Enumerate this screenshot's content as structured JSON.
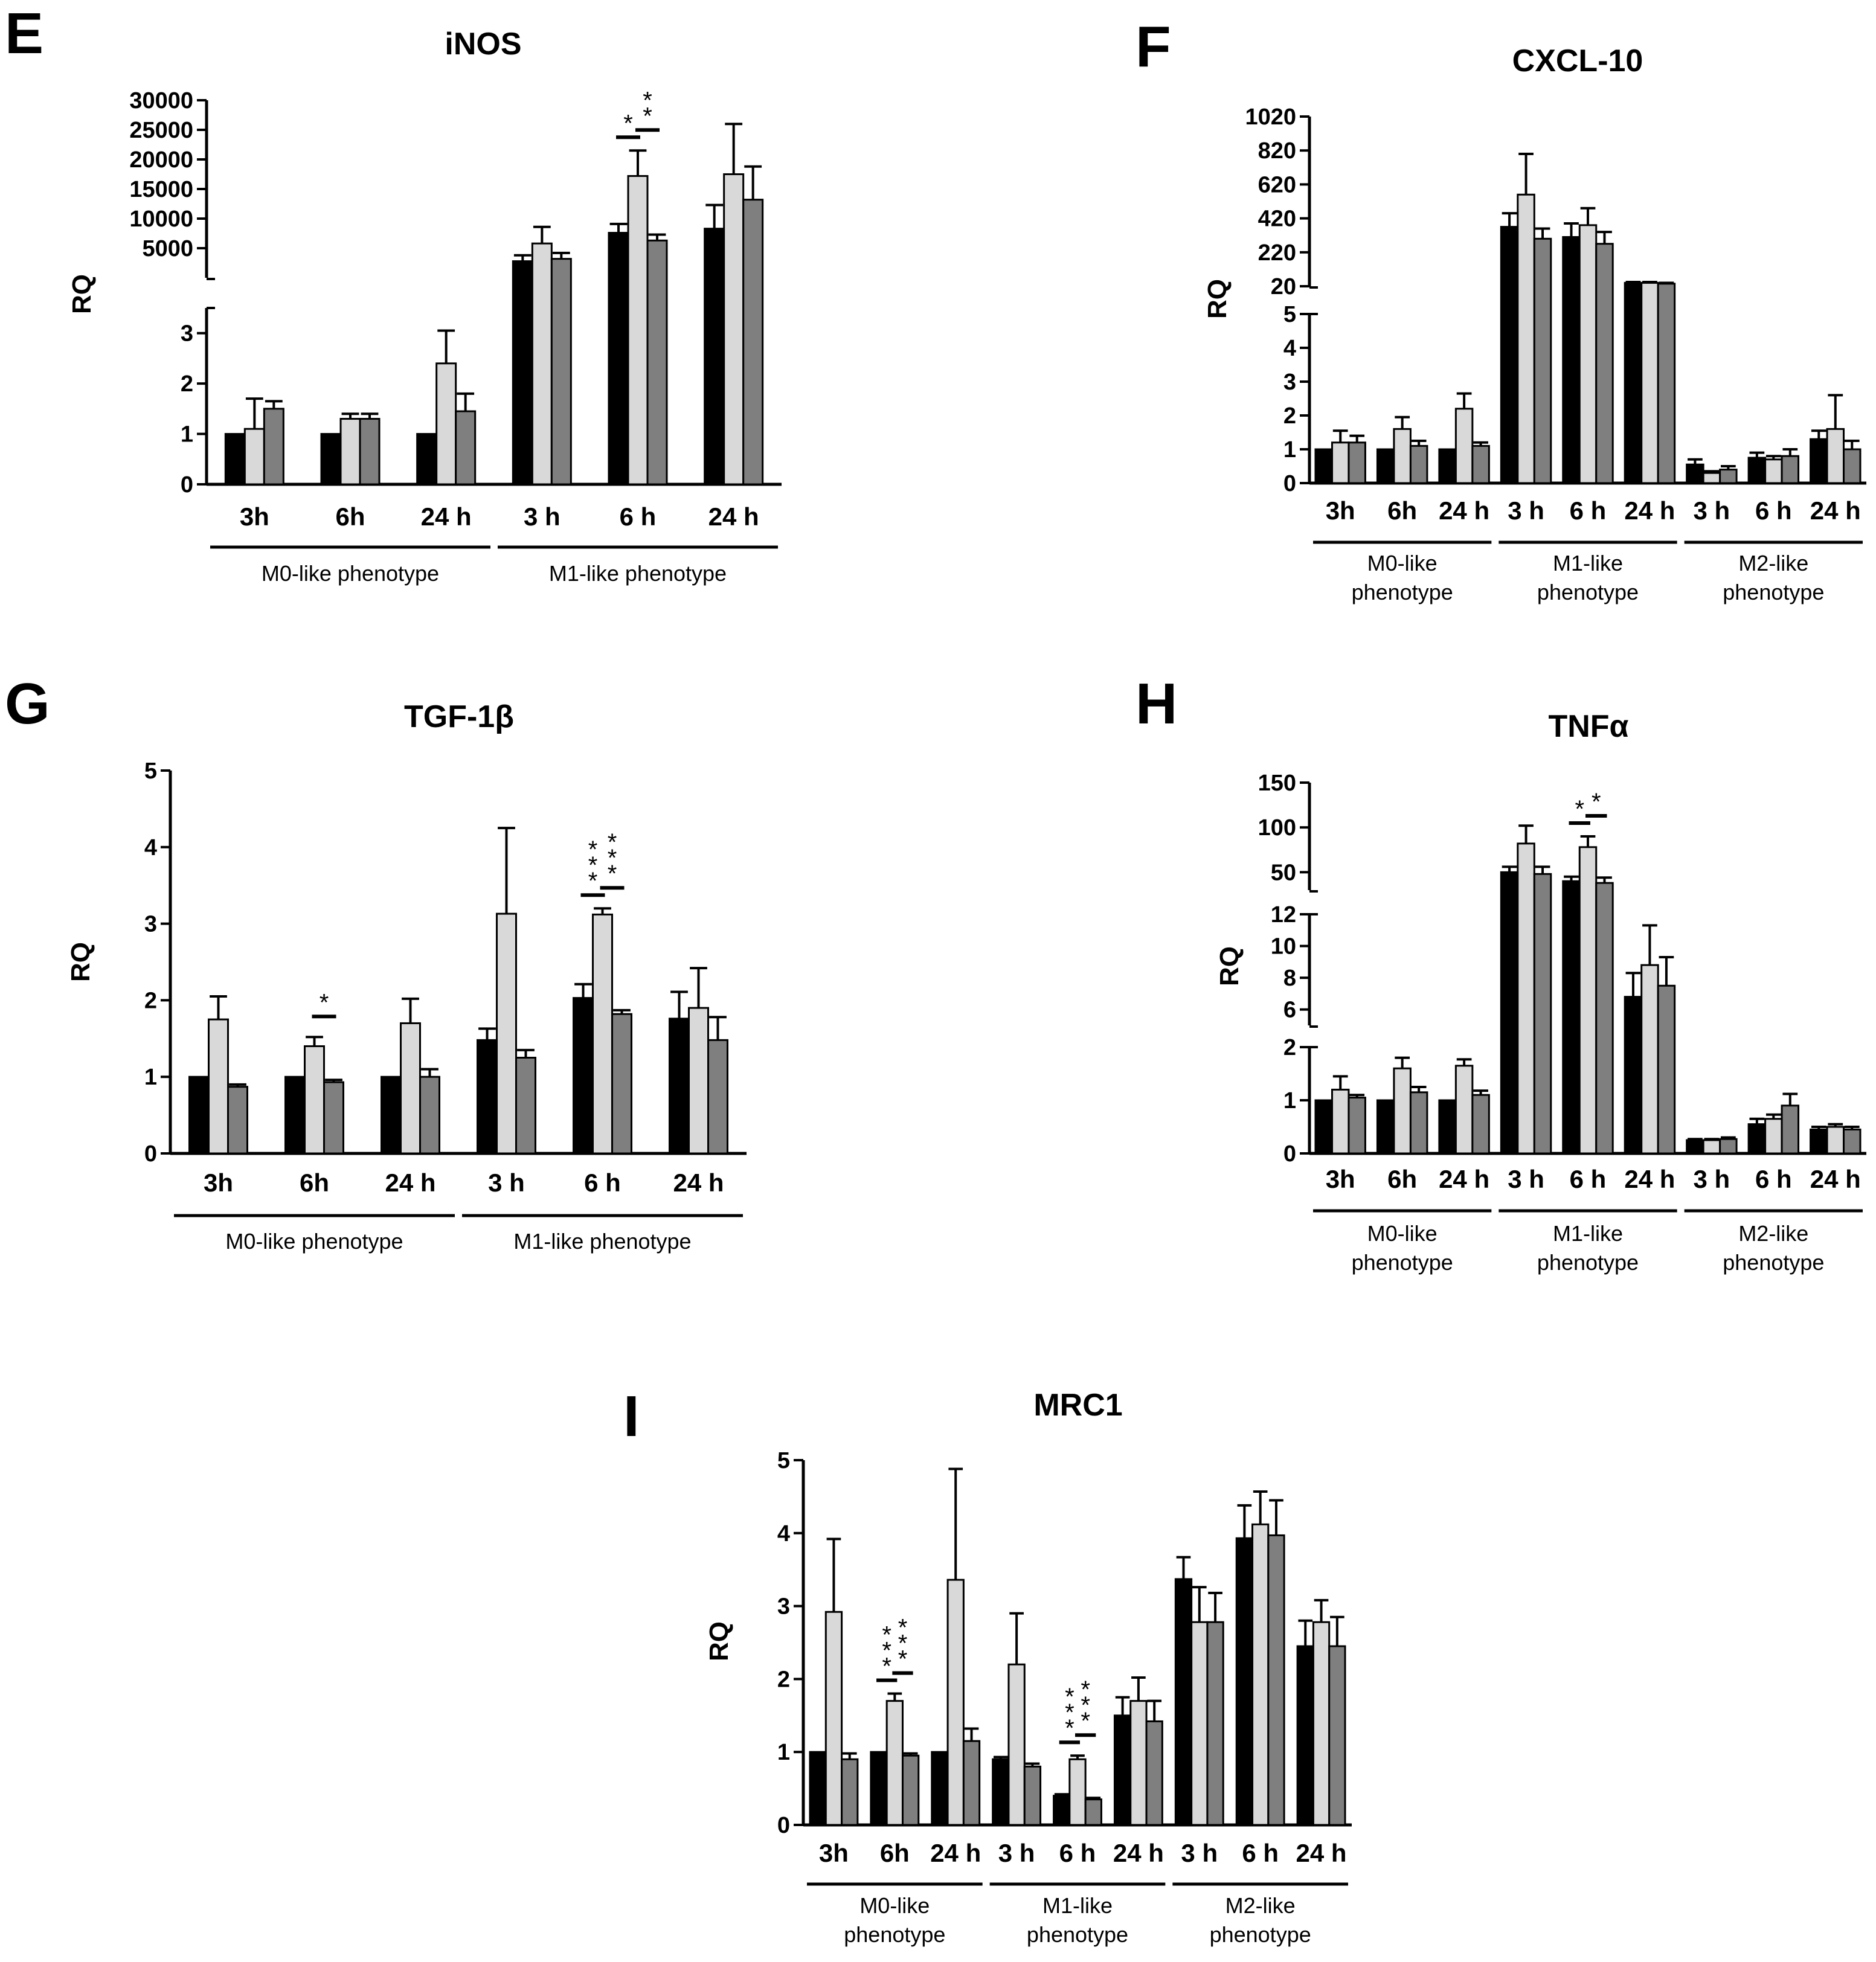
{
  "panel_letters": [
    "E",
    "F",
    "G",
    "H",
    "I"
  ],
  "colors": {
    "series": [
      "#000000",
      "#d9d9d9",
      "#7f7f7f"
    ],
    "axis": "#000000"
  },
  "chart_data": [
    {
      "id": "E",
      "letter": "E",
      "type": "bar",
      "title": "iNOS",
      "ylabel": "RQ",
      "xticks": [
        "3h",
        "6h",
        "24 h",
        "3 h",
        "6 h",
        "24 h"
      ],
      "groups": [
        {
          "label": [
            "M0-like phenotype"
          ],
          "n": 3
        },
        {
          "label": [
            "M1-like phenotype"
          ],
          "n": 3
        }
      ],
      "lower": {
        "max": 3.5,
        "ticks": [
          0,
          1,
          2,
          3
        ],
        "labels": [
          "0",
          "1",
          "2",
          "3"
        ]
      },
      "upper": {
        "min": 0,
        "max": 30000,
        "ticks": [
          5000,
          10000,
          15000,
          20000,
          25000,
          30000
        ],
        "labels": [
          "5000",
          "10000",
          "15000",
          "20000",
          "25000",
          "30000"
        ]
      },
      "bars": [
        [
          1,
          1.1,
          1.5
        ],
        [
          1,
          1.3,
          1.3
        ],
        [
          1,
          2.4,
          1.45
        ],
        [
          2800,
          5800,
          3200
        ],
        [
          7600,
          17200,
          6300
        ],
        [
          8300,
          17500,
          13200
        ]
      ],
      "errors": [
        [
          0,
          0.6,
          0.15
        ],
        [
          0,
          0.1,
          0.1
        ],
        [
          0,
          0.65,
          0.35
        ],
        [
          1000,
          2800,
          1000
        ],
        [
          1500,
          4300,
          1000
        ],
        [
          4000,
          8500,
          5600
        ]
      ],
      "significance": [
        {
          "x": 4,
          "from": 0,
          "to": 1,
          "label": [
            "*"
          ]
        },
        {
          "x": 4,
          "from": 1,
          "to": 2,
          "label": [
            "*",
            "*"
          ]
        }
      ]
    },
    {
      "id": "F",
      "letter": "F",
      "type": "bar",
      "title": "CXCL-10",
      "ylabel": "RQ",
      "xticks": [
        "3h",
        "6h",
        "24 h",
        "3 h",
        "6 h",
        "24 h",
        "3 h",
        "6 h",
        "24 h"
      ],
      "groups": [
        {
          "label": [
            "M0-like",
            "phenotype"
          ],
          "n": 3
        },
        {
          "label": [
            "M1-like",
            "phenotype"
          ],
          "n": 3
        },
        {
          "label": [
            "M2-like",
            "phenotype"
          ],
          "n": 3
        }
      ],
      "lower": {
        "max": 5,
        "ticks": [
          0,
          1,
          2,
          3,
          4,
          5
        ],
        "labels": [
          "0",
          "1",
          "2",
          "3",
          "4",
          "5"
        ]
      },
      "upper": {
        "min": 20,
        "max": 1020,
        "ticks": [
          20,
          220,
          420,
          620,
          820,
          1020
        ],
        "labels": [
          "20",
          "220",
          "420",
          "620",
          "820",
          "1020"
        ]
      },
      "bars": [
        [
          1,
          1.2,
          1.2
        ],
        [
          1,
          1.6,
          1.1
        ],
        [
          1,
          2.2,
          1.1
        ],
        [
          370,
          560,
          300
        ],
        [
          310,
          380,
          270
        ],
        [
          40,
          40,
          35
        ],
        [
          0.55,
          0.3,
          0.4
        ],
        [
          0.75,
          0.7,
          0.8
        ],
        [
          1.3,
          1.6,
          1.0
        ]
      ],
      "errors": [
        [
          0,
          0.35,
          0.2
        ],
        [
          0,
          0.35,
          0.15
        ],
        [
          0,
          0.45,
          0.1
        ],
        [
          80,
          240,
          60
        ],
        [
          80,
          100,
          70
        ],
        [
          5,
          5,
          5
        ],
        [
          0.15,
          0.05,
          0.1
        ],
        [
          0.15,
          0.1,
          0.2
        ],
        [
          0.25,
          1.0,
          0.25
        ]
      ],
      "significance": []
    },
    {
      "id": "G",
      "letter": "G",
      "type": "bar",
      "title": "TGF-1β",
      "ylabel": "RQ",
      "xticks": [
        "3h",
        "6h",
        "24 h",
        "3 h",
        "6 h",
        "24 h"
      ],
      "groups": [
        {
          "label": [
            "M0-like phenotype"
          ],
          "n": 3
        },
        {
          "label": [
            "M1-like phenotype"
          ],
          "n": 3
        }
      ],
      "ylim": [
        0,
        5
      ],
      "ticks": [
        0,
        1,
        2,
        3,
        4,
        5
      ],
      "labels": [
        "0",
        "1",
        "2",
        "3",
        "4",
        "5"
      ],
      "bars": [
        [
          1,
          1.75,
          0.87
        ],
        [
          1,
          1.4,
          0.93
        ],
        [
          1,
          1.7,
          1.0
        ],
        [
          1.48,
          3.13,
          1.25
        ],
        [
          2.03,
          3.12,
          1.82
        ],
        [
          1.76,
          1.9,
          1.48
        ]
      ],
      "errors": [
        [
          0,
          0.3,
          0.03
        ],
        [
          0,
          0.12,
          0.03
        ],
        [
          0,
          0.32,
          0.1
        ],
        [
          0.15,
          1.12,
          0.1
        ],
        [
          0.18,
          0.08,
          0.05
        ],
        [
          0.35,
          0.52,
          0.3
        ]
      ],
      "significance": [
        {
          "x": 1,
          "from": 1,
          "to": 2,
          "label": [
            "*"
          ]
        },
        {
          "x": 4,
          "from": 0,
          "to": 1,
          "label": [
            "*",
            "*",
            "*"
          ]
        },
        {
          "x": 4,
          "from": 1,
          "to": 2,
          "label": [
            "*",
            "*",
            "*"
          ]
        }
      ]
    },
    {
      "id": "H",
      "letter": "H",
      "type": "bar",
      "title": "TNFα",
      "ylabel": "RQ",
      "xticks": [
        "3h",
        "6h",
        "24 h",
        "3 h",
        "6 h",
        "24 h",
        "3 h",
        "6 h",
        "24 h"
      ],
      "groups": [
        {
          "label": [
            "M0-like",
            "phenotype"
          ],
          "n": 3
        },
        {
          "label": [
            "M1-like",
            "phenotype"
          ],
          "n": 3
        },
        {
          "label": [
            "M2-like",
            "phenotype"
          ],
          "n": 3
        }
      ],
      "lower": {
        "max": 2,
        "ticks": [
          0,
          1,
          2
        ],
        "labels": [
          "0",
          "1",
          "2"
        ]
      },
      "middle": {
        "min": 5,
        "max": 12,
        "ticks": [
          6,
          8,
          10,
          12
        ],
        "labels": [
          "6",
          "8",
          "10",
          "12"
        ]
      },
      "upper": {
        "min": 30,
        "max": 150,
        "ticks": [
          50,
          100,
          150
        ],
        "labels": [
          "50",
          "100",
          "150"
        ]
      },
      "bars": [
        [
          1,
          1.2,
          1.05
        ],
        [
          1,
          1.6,
          1.15
        ],
        [
          1,
          1.65,
          1.1
        ],
        [
          50,
          82,
          48
        ],
        [
          40,
          78,
          38
        ],
        [
          6.8,
          8.8,
          7.5
        ],
        [
          0.25,
          0.25,
          0.27
        ],
        [
          0.55,
          0.65,
          0.9
        ],
        [
          0.45,
          0.5,
          0.45
        ]
      ],
      "errors": [
        [
          0,
          0.25,
          0.05
        ],
        [
          0,
          0.2,
          0.1
        ],
        [
          0,
          0.12,
          0.08
        ],
        [
          6,
          20,
          8
        ],
        [
          5,
          12,
          6
        ],
        [
          1.5,
          2.5,
          1.8
        ],
        [
          0.02,
          0.02,
          0.03
        ],
        [
          0.1,
          0.08,
          0.22
        ],
        [
          0.05,
          0.05,
          0.05
        ]
      ],
      "significance": [
        {
          "x": 4,
          "from": 0,
          "to": 1,
          "label": [
            "*"
          ]
        },
        {
          "x": 4,
          "from": 1,
          "to": 2,
          "label": [
            "*"
          ]
        }
      ]
    },
    {
      "id": "I",
      "letter": "I",
      "type": "bar",
      "title": "MRC1",
      "ylabel": "RQ",
      "xticks": [
        "3h",
        "6h",
        "24 h",
        "3 h",
        "6 h",
        "24 h",
        "3 h",
        "6 h",
        "24 h"
      ],
      "groups": [
        {
          "label": [
            "M0-like",
            "phenotype"
          ],
          "n": 3
        },
        {
          "label": [
            "M1-like",
            "phenotype"
          ],
          "n": 3
        },
        {
          "label": [
            "M2-like",
            "phenotype"
          ],
          "n": 3
        }
      ],
      "ylim": [
        0,
        5
      ],
      "ticks": [
        0,
        1,
        2,
        3,
        4,
        5
      ],
      "labels": [
        "0",
        "1",
        "2",
        "3",
        "4",
        "5"
      ],
      "bars": [
        [
          1,
          2.92,
          0.9
        ],
        [
          1,
          1.7,
          0.95
        ],
        [
          1,
          3.36,
          1.15
        ],
        [
          0.9,
          2.2,
          0.8
        ],
        [
          0.4,
          0.9,
          0.35
        ],
        [
          1.5,
          1.7,
          1.42
        ],
        [
          3.37,
          2.78,
          2.78
        ],
        [
          3.93,
          4.12,
          3.97
        ],
        [
          2.45,
          2.78,
          2.45
        ]
      ],
      "errors": [
        [
          0,
          1.0,
          0.08
        ],
        [
          0,
          0.1,
          0.03
        ],
        [
          0,
          1.52,
          0.17
        ],
        [
          0.03,
          0.7,
          0.04
        ],
        [
          0.02,
          0.05,
          0.02
        ],
        [
          0.25,
          0.32,
          0.28
        ],
        [
          0.3,
          0.48,
          0.4
        ],
        [
          0.45,
          0.45,
          0.48
        ],
        [
          0.35,
          0.3,
          0.4
        ]
      ],
      "significance": [
        {
          "x": 1,
          "from": 0,
          "to": 1,
          "label": [
            "*",
            "*",
            "*"
          ]
        },
        {
          "x": 1,
          "from": 1,
          "to": 2,
          "label": [
            "*",
            "*",
            "*"
          ]
        },
        {
          "x": 4,
          "from": 0,
          "to": 1,
          "label": [
            "*",
            "*",
            "*"
          ]
        },
        {
          "x": 4,
          "from": 1,
          "to": 2,
          "label": [
            "*",
            "*",
            "*"
          ]
        }
      ]
    }
  ]
}
